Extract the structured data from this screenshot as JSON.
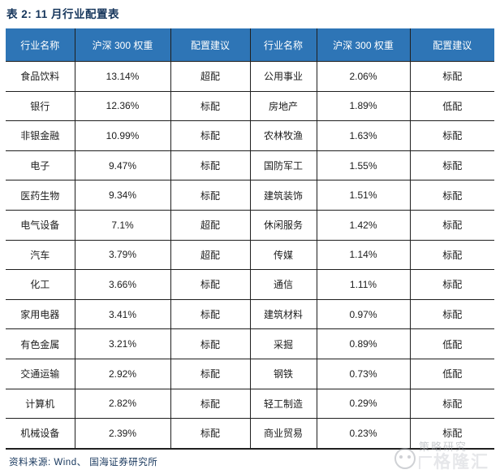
{
  "title": "表 2: 11 月行业配置表",
  "source": "资料来源: Wind、 国海证券研究所",
  "colors": {
    "header_bg": "#2E75B6",
    "border": "#1F1F1F",
    "title_text": "#16365C",
    "underweight": "#FF0000"
  },
  "legend": {
    "overweight_label": "超配",
    "neutral_label": "标配",
    "underweight_label": "低配"
  },
  "watermark": {
    "line1": "策略研究",
    "line2": "格隆汇"
  },
  "table": {
    "headers": [
      "行业名称",
      "沪深 300 权重",
      "配置建议",
      "行业名称",
      "沪深 300 权重",
      "配置建议"
    ],
    "rows": [
      {
        "cells": [
          "食品饮料",
          "13.14%",
          "超配",
          "公用事业",
          "2.06%",
          "标配"
        ]
      },
      {
        "cells": [
          "银行",
          "12.36%",
          "标配",
          "房地产",
          "1.89%",
          "低配"
        ]
      },
      {
        "cells": [
          "非银金融",
          "10.99%",
          "标配",
          "农林牧渔",
          "1.63%",
          "标配"
        ]
      },
      {
        "cells": [
          "电子",
          "9.47%",
          "标配",
          "国防军工",
          "1.55%",
          "标配"
        ]
      },
      {
        "cells": [
          "医药生物",
          "9.34%",
          "标配",
          "建筑装饰",
          "1.51%",
          "标配"
        ]
      },
      {
        "cells": [
          "电气设备",
          "7.1%",
          "超配",
          "休闲服务",
          "1.42%",
          "标配"
        ]
      },
      {
        "cells": [
          "汽车",
          "3.79%",
          "超配",
          "传媒",
          "1.14%",
          "标配"
        ]
      },
      {
        "cells": [
          "化工",
          "3.66%",
          "标配",
          "通信",
          "1.11%",
          "标配"
        ]
      },
      {
        "cells": [
          "家用电器",
          "3.41%",
          "标配",
          "建筑材料",
          "0.97%",
          "标配"
        ]
      },
      {
        "cells": [
          "有色金属",
          "3.21%",
          "标配",
          "采掘",
          "0.89%",
          "低配"
        ]
      },
      {
        "cells": [
          "交通运输",
          "2.92%",
          "标配",
          "钢铁",
          "0.73%",
          "低配"
        ]
      },
      {
        "cells": [
          "计算机",
          "2.82%",
          "标配",
          "轻工制造",
          "0.29%",
          "标配"
        ]
      },
      {
        "cells": [
          "机械设备",
          "2.39%",
          "标配",
          "商业贸易",
          "0.23%",
          "标配"
        ]
      }
    ]
  }
}
